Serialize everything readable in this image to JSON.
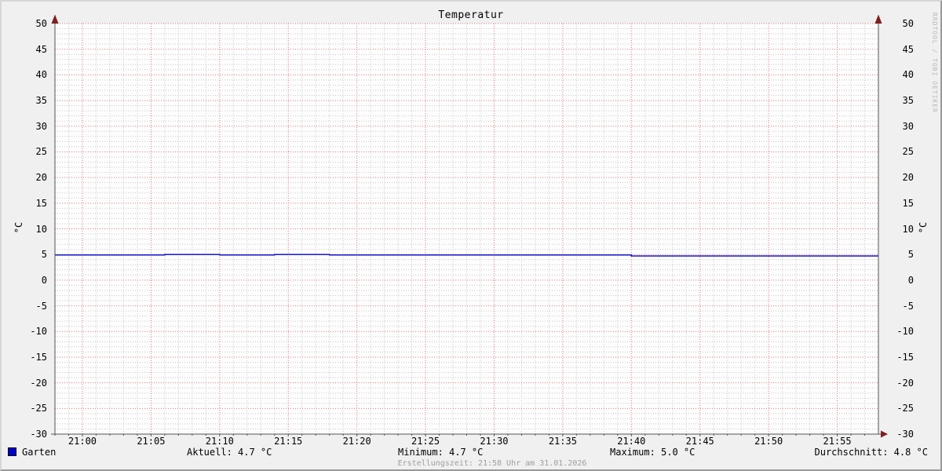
{
  "title": "Temperatur",
  "watermark": "RRDTOOL / TOBI OETIKER",
  "axes": {
    "y_unit": "°C",
    "y_ticks": [
      "50",
      "45",
      "40",
      "35",
      "30",
      "25",
      "20",
      "15",
      "10",
      "5",
      "0",
      "-5",
      "-10",
      "-15",
      "-20",
      "-25",
      "-30"
    ],
    "x_ticks": [
      "21:00",
      "21:05",
      "21:10",
      "21:15",
      "21:20",
      "21:25",
      "21:30",
      "21:35",
      "21:40",
      "21:45",
      "21:50",
      "21:55"
    ]
  },
  "legend": {
    "series_label": "Garten",
    "series_color": "#0000cc",
    "current": "Aktuell: 4.7 °C",
    "minimum": "Minimum: 4.7 °C",
    "maximum": "Maximum: 5.0 °C",
    "average": "Durchschnitt: 4.8 °C"
  },
  "footer": "Erstellungszeit: 21:58 Uhr am 31.01.2026",
  "colors": {
    "background": "#f0f0f0",
    "canvas": "#fdfdfd",
    "grid_major": "#e07a7a",
    "grid_minor": "#c9c9c9",
    "axis": "#555555",
    "arrow": "#7f1f1f",
    "line": "#0000cc"
  },
  "chart_data": {
    "type": "line",
    "title": "Temperatur",
    "xlabel": "",
    "ylabel": "°C",
    "ylim": [
      -30,
      50
    ],
    "y_tick_step": 5,
    "x_range": [
      "20:58",
      "21:58"
    ],
    "x_tick_interval_min": 5,
    "grid": "on",
    "legend_position": "bottom",
    "series": [
      {
        "name": "Garten",
        "color": "#0000cc",
        "step": true,
        "points": [
          [
            "20:58",
            4.9
          ],
          [
            "21:06",
            5.0
          ],
          [
            "21:10",
            4.9
          ],
          [
            "21:14",
            5.0
          ],
          [
            "21:18",
            4.9
          ],
          [
            "21:40",
            4.7
          ],
          [
            "21:58",
            4.7
          ]
        ]
      }
    ],
    "stats": {
      "aktuell": 4.7,
      "minimum": 4.7,
      "maximum": 5.0,
      "durchschnitt": 4.8
    }
  }
}
